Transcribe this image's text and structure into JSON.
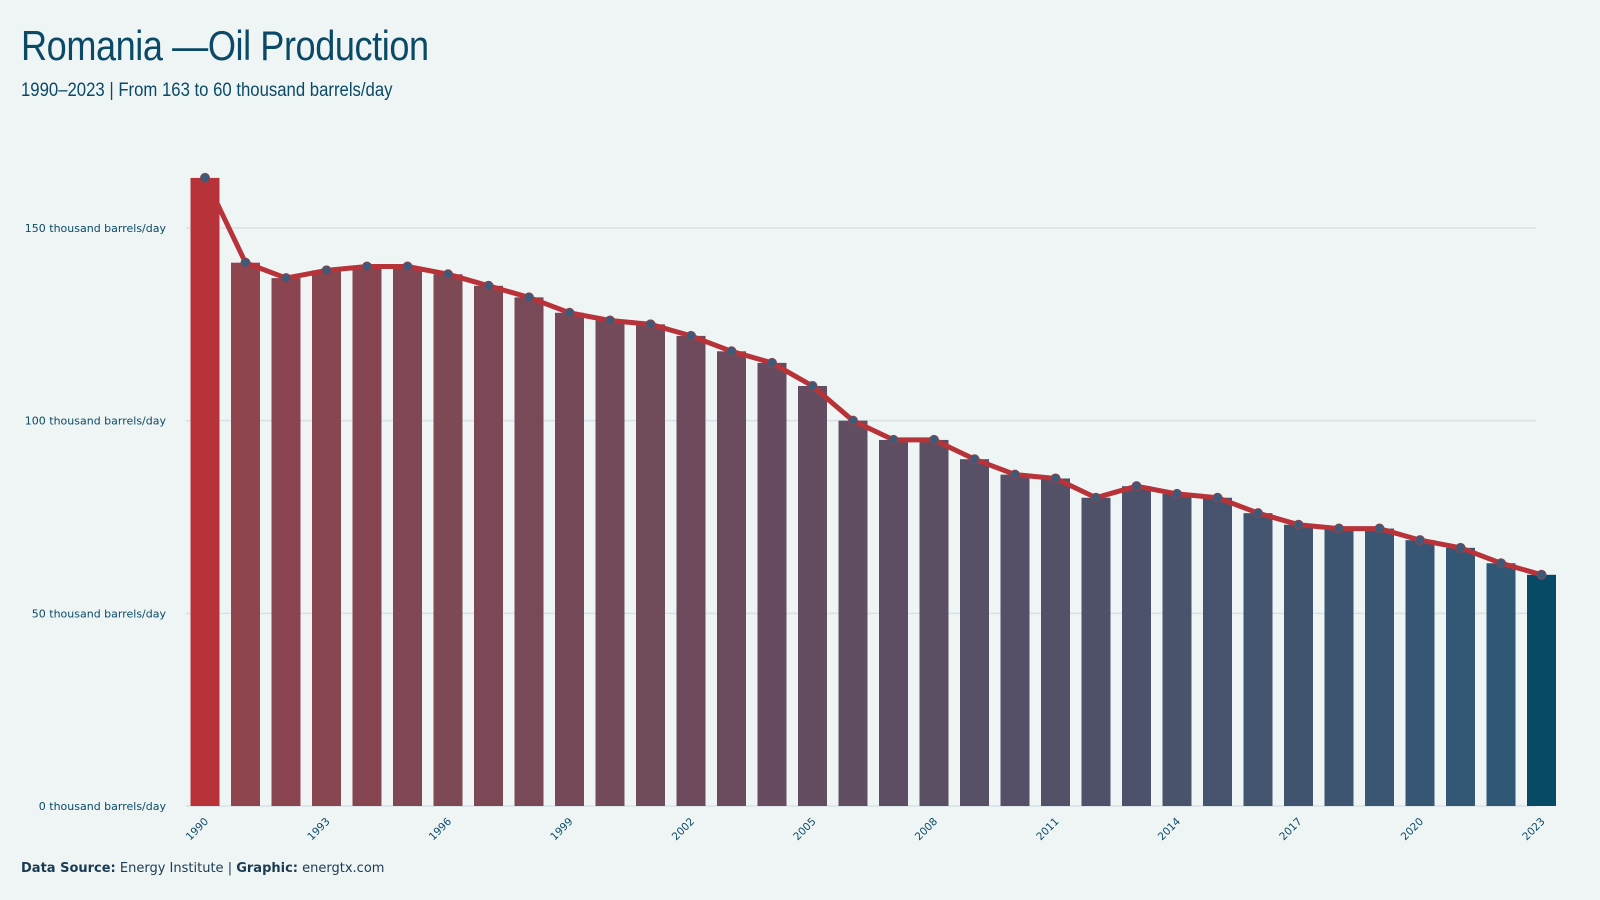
{
  "title": "Romania —Oil Production",
  "subtitle": "1990–2023 | From 163 to 60 thousand barrels/day",
  "footer": {
    "source_label": "Data Source:",
    "source_value": "Energy Institute",
    "separator": "|",
    "graphic_label": "Graphic:",
    "graphic_value": "energtx.com"
  },
  "colors": {
    "background": "#eff5f5",
    "start_bar": "#b83339",
    "end_bar": "#064a66",
    "line": "#b83339",
    "marker": "#3d5a78",
    "gridline": "#d7e1e4",
    "text": "#0a4a66"
  },
  "chart_data": {
    "type": "bar",
    "y_unit_suffix": " thousand barrels/day",
    "ylim": [
      0,
      175
    ],
    "yticks": [
      0,
      50,
      100,
      150
    ],
    "grid": true,
    "x_tick_labels": [
      "1990",
      "1993",
      "1996",
      "1999",
      "2002",
      "2005",
      "2008",
      "2011",
      "2014",
      "2017",
      "2020",
      "2023"
    ],
    "overlay": "line with markers",
    "categories": [
      "1990",
      "1991",
      "1992",
      "1993",
      "1994",
      "1995",
      "1996",
      "1997",
      "1998",
      "1999",
      "2000",
      "2001",
      "2002",
      "2003",
      "2004",
      "2005",
      "2006",
      "2007",
      "2008",
      "2009",
      "2010",
      "2011",
      "2012",
      "2013",
      "2014",
      "2015",
      "2016",
      "2017",
      "2018",
      "2019",
      "2020",
      "2021",
      "2022",
      "2023"
    ],
    "values": [
      163,
      141,
      137,
      139,
      140,
      140,
      138,
      135,
      132,
      128,
      126,
      125,
      122,
      118,
      115,
      109,
      100,
      95,
      95,
      90,
      86,
      85,
      80,
      83,
      81,
      80,
      76,
      73,
      72,
      72,
      69,
      67,
      63,
      60
    ]
  }
}
